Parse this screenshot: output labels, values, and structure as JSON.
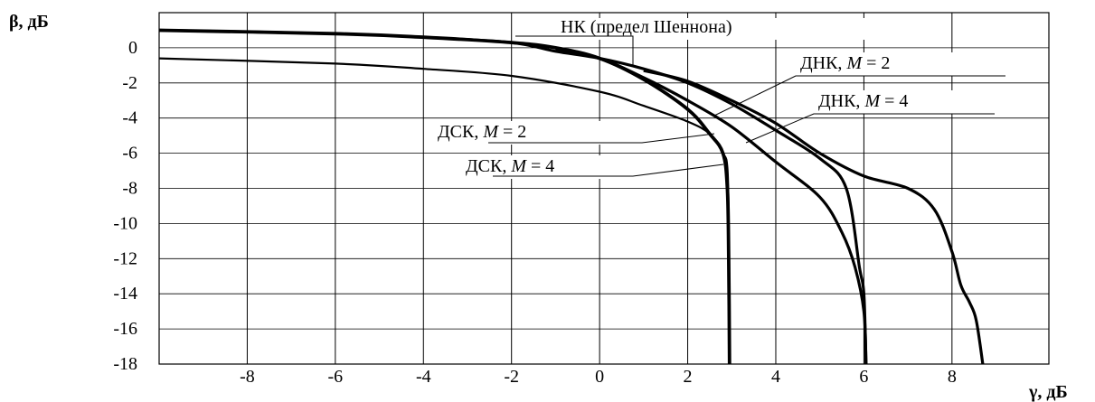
{
  "chart_data": {
    "type": "line",
    "xlabel": "γ, дБ",
    "ylabel": "β, дБ",
    "xlim": [
      -10,
      10.2
    ],
    "ylim": [
      -18,
      2
    ],
    "xticks": [
      -8,
      -6,
      -4,
      -2,
      0,
      2,
      4,
      6,
      8
    ],
    "yticks": [
      0,
      -2,
      -4,
      -6,
      -8,
      -10,
      -12,
      -14,
      -16,
      -18
    ],
    "xtick_labels": [
      "-8",
      "-6",
      "-4",
      "-2",
      "0",
      "2",
      "4",
      "6",
      "8"
    ],
    "ytick_labels": [
      "0",
      "-2",
      "-4",
      "-6",
      "-8",
      "-10",
      "-12",
      "-14",
      "-16",
      "-18"
    ],
    "grid": true,
    "series": [
      {
        "name": "НК (предел Шеннона)",
        "x": [
          1.0,
          2.0,
          3.0,
          4.0,
          5.0,
          6.0,
          7.0,
          7.6,
          8.0,
          8.2,
          8.4,
          8.55,
          8.7
        ],
        "y": [
          -1.3,
          -1.9,
          -3.0,
          -4.3,
          -6.0,
          -7.3,
          -8.0,
          -9.2,
          -11.6,
          -13.5,
          -14.5,
          -15.5,
          -18.0
        ]
      },
      {
        "name": "ДНК, M = 2",
        "x": [
          -10.0,
          -6.0,
          -4.0,
          -2.0,
          -1.0,
          0.0,
          1.0,
          2.0,
          3.0,
          4.0,
          5.0,
          5.6,
          5.9,
          6.0,
          6.05
        ],
        "y": [
          1.0,
          0.8,
          0.6,
          0.3,
          -0.2,
          -0.6,
          -1.2,
          -2.0,
          -3.2,
          -4.7,
          -6.3,
          -8.0,
          -12.5,
          -14.0,
          -18.0
        ]
      },
      {
        "name": "ДНК, M = 4",
        "x": [
          -1.0,
          0.0,
          1.0,
          2.0,
          3.0,
          4.0,
          5.0,
          5.5,
          5.8,
          6.0,
          6.05
        ],
        "y": [
          -0.1,
          -0.6,
          -1.7,
          -3.0,
          -4.5,
          -6.5,
          -8.5,
          -10.5,
          -12.5,
          -15.0,
          -18.0
        ]
      },
      {
        "name": "ДСК, M = 2",
        "x": [
          -10.0,
          -6.0,
          -4.0,
          -2.0,
          -1.0,
          0.0,
          1.0,
          2.0,
          2.5,
          2.8,
          2.9,
          2.93,
          2.95
        ],
        "y": [
          1.0,
          0.8,
          0.6,
          0.3,
          0.0,
          -0.6,
          -1.8,
          -3.5,
          -4.9,
          -6.0,
          -8.0,
          -12.0,
          -18.0
        ]
      },
      {
        "name": "ДСК, M = 4",
        "x": [
          -10.0,
          -6.0,
          -4.0,
          -2.0,
          0.0,
          1.0,
          2.0,
          2.5,
          2.8,
          2.9,
          2.93,
          2.95
        ],
        "y": [
          -0.6,
          -0.9,
          -1.2,
          -1.6,
          -2.5,
          -3.3,
          -4.2,
          -4.9,
          -6.0,
          -6.8,
          -10.0,
          -18.0
        ]
      }
    ],
    "annotations": [
      {
        "prefix": "НК  (предел Шеннона)",
        "italic": "",
        "suffix": ""
      },
      {
        "prefix": "ДНК, ",
        "italic": "M",
        "suffix": " = 2"
      },
      {
        "prefix": "ДНК, ",
        "italic": "M",
        "suffix": " = 4"
      },
      {
        "prefix": "ДСК, ",
        "italic": "M",
        "suffix": " = 2"
      },
      {
        "prefix": "ДСК, ",
        "italic": "M",
        "suffix": " = 4"
      }
    ],
    "line_color": "#000000",
    "grid_color": "#000000",
    "background": "#ffffff"
  }
}
